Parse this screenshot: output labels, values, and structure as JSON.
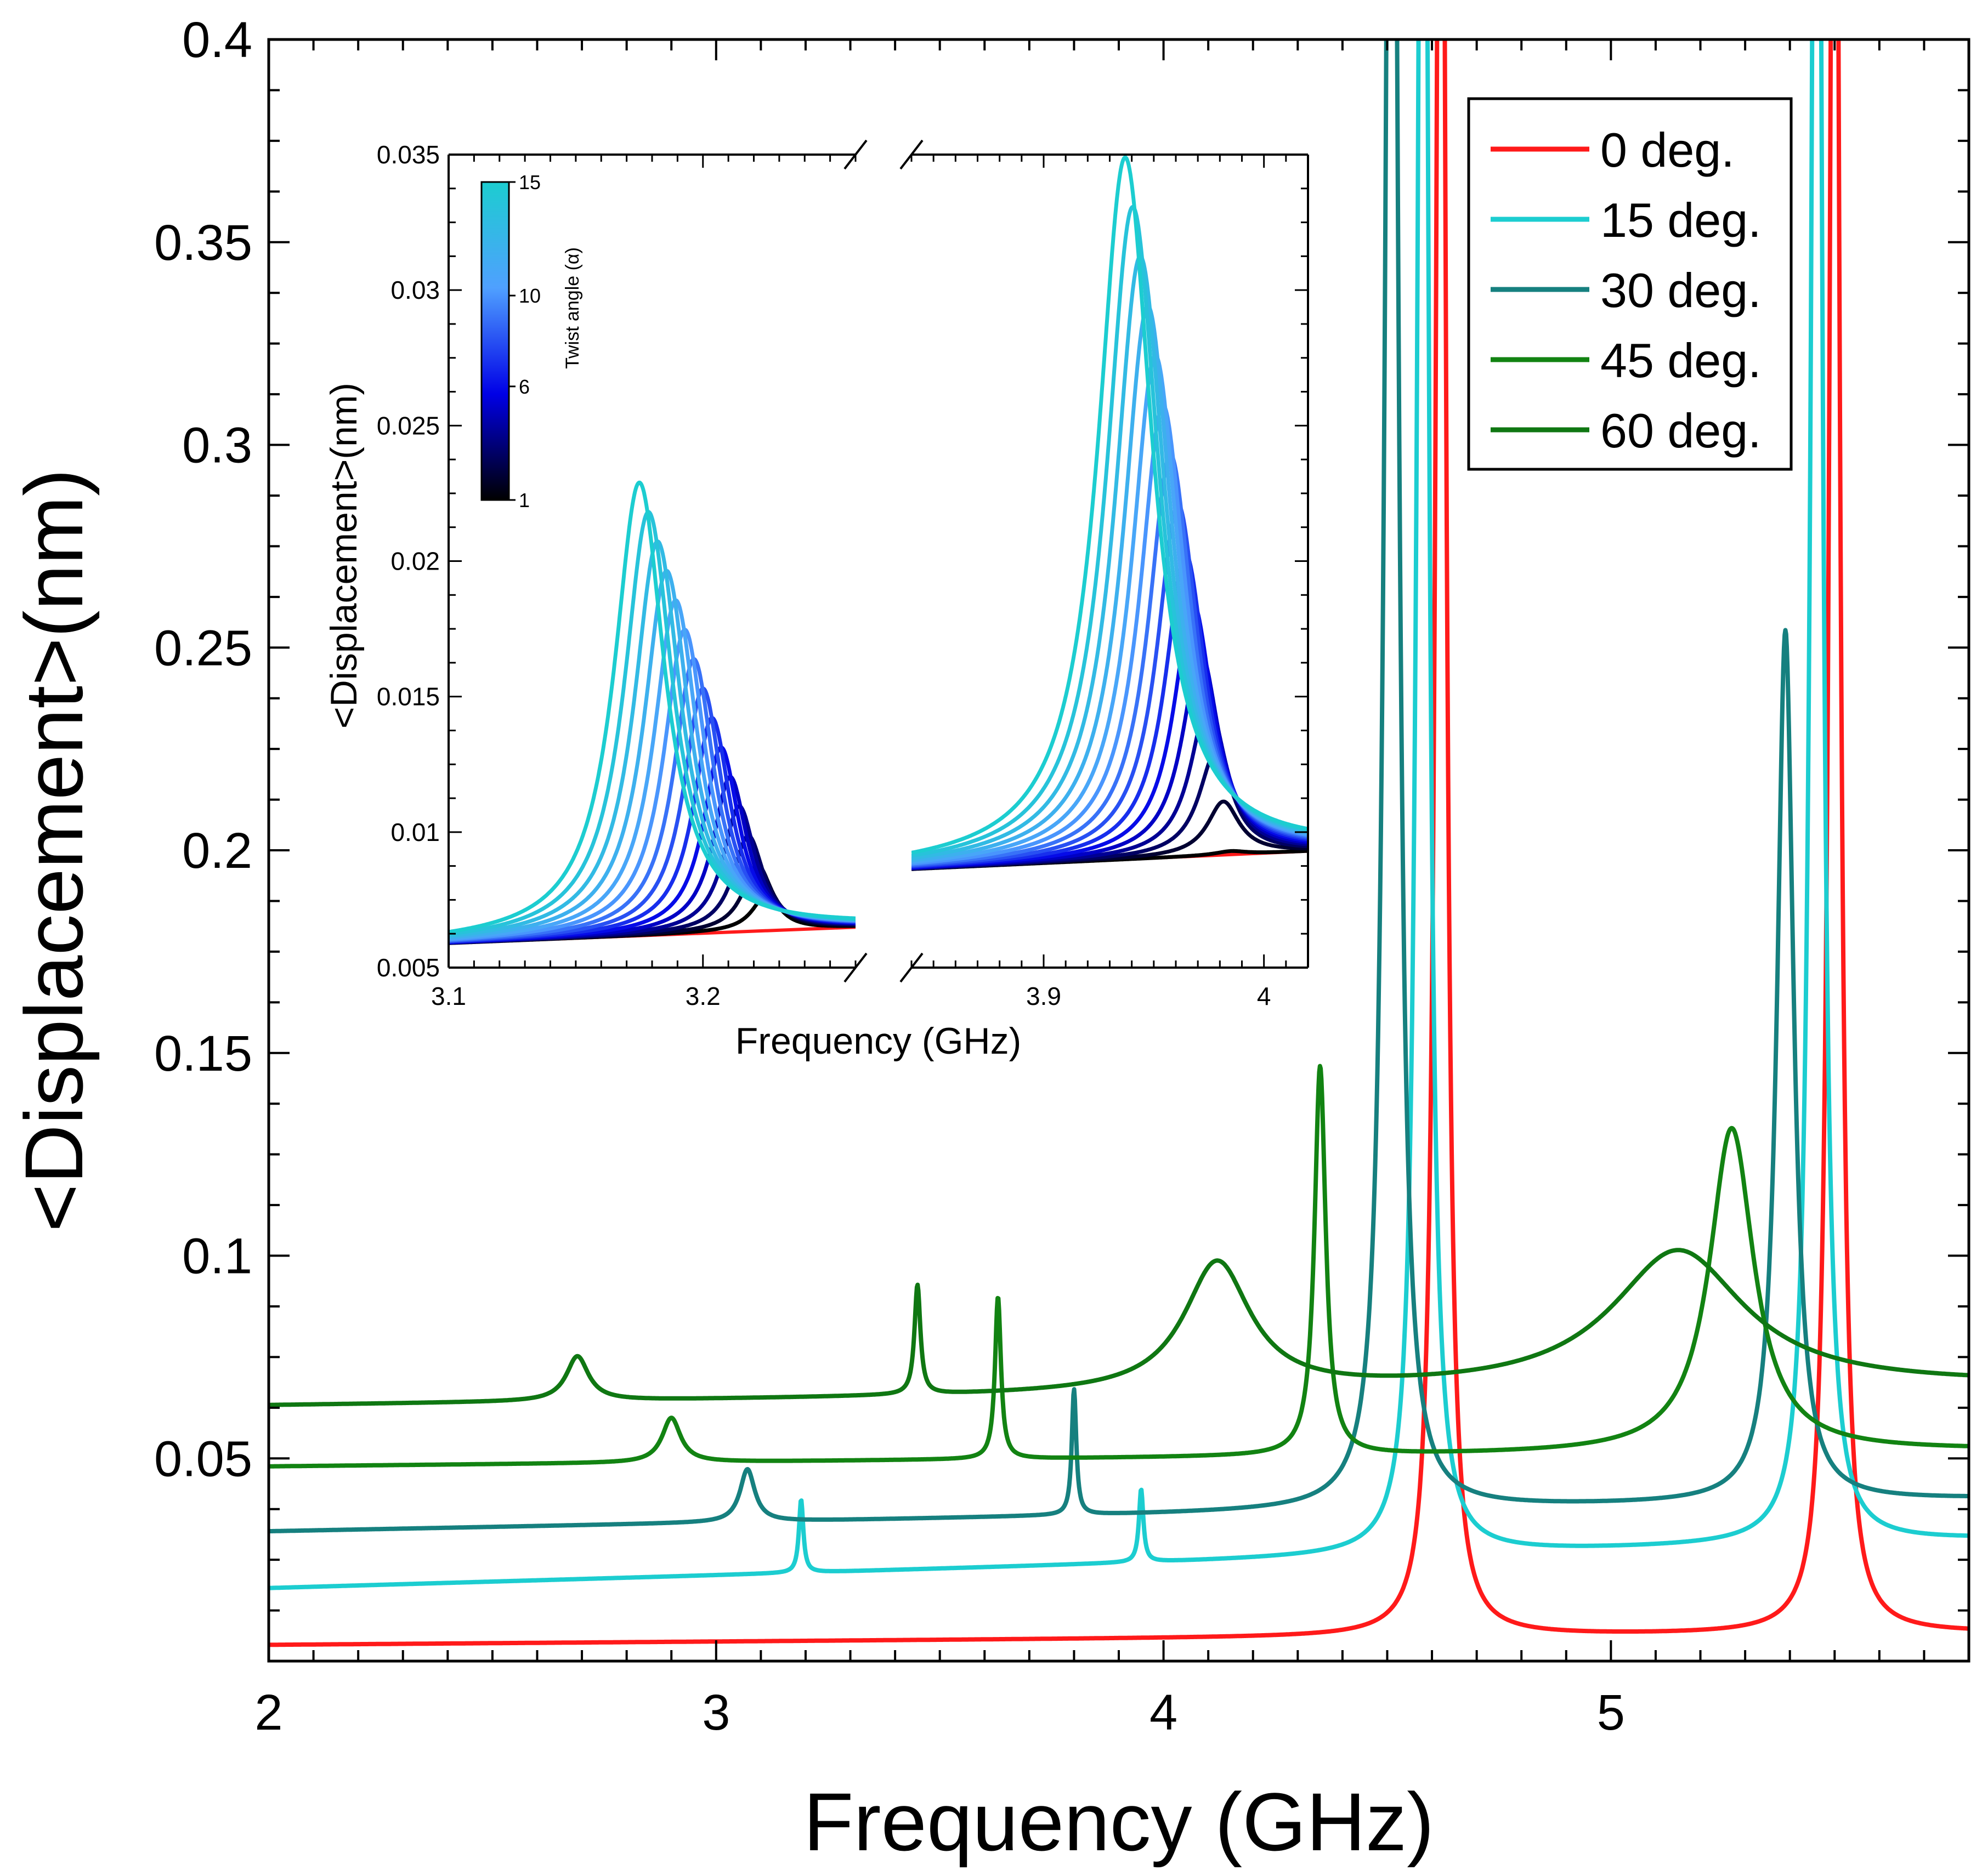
{
  "chart_data": [
    {
      "type": "line",
      "xlabel": "Frequency (GHz)",
      "ylabel": "<Displacement>(nm)",
      "xlim": [
        2.0,
        5.8
      ],
      "ylim": [
        0.0,
        0.4
      ],
      "x_ticks": [
        "2",
        "3",
        "4",
        "5"
      ],
      "x_tick_values": [
        2,
        3,
        4,
        5
      ],
      "y_ticks": [
        "0.05",
        "0.1",
        "0.15",
        "0.2",
        "0.25",
        "0.3",
        "0.35",
        "0.4"
      ],
      "y_tick_values": [
        0.05,
        0.1,
        0.15,
        0.2,
        0.25,
        0.3,
        0.35,
        0.4
      ],
      "legend_position": "top-right",
      "series": [
        {
          "name": "0 deg.",
          "color": "#ff1a1a",
          "baseline_start": 0.004,
          "baseline_end": 0.007,
          "peaks": [
            [
              4.62,
              0.6,
              0.012
            ],
            [
              5.5,
              0.6,
              0.012
            ]
          ]
        },
        {
          "name": "15 deg.",
          "color": "#1ccdd0",
          "baseline_start": 0.018,
          "baseline_end": 0.03,
          "peaks": [
            [
              3.19,
              0.018,
              0.006
            ],
            [
              3.95,
              0.018,
              0.006
            ],
            [
              4.58,
              0.6,
              0.013
            ],
            [
              5.46,
              0.6,
              0.013
            ]
          ]
        },
        {
          "name": "30 deg.",
          "color": "#16807f",
          "baseline_start": 0.032,
          "baseline_end": 0.04,
          "peaks": [
            [
              3.07,
              0.013,
              0.02
            ],
            [
              3.8,
              0.031,
              0.006
            ],
            [
              4.51,
              0.6,
              0.015
            ],
            [
              5.39,
              0.215,
              0.022
            ]
          ]
        },
        {
          "name": "45 deg.",
          "color": "#128312",
          "baseline_start": 0.048,
          "baseline_end": 0.052,
          "peaks": [
            [
              2.9,
              0.011,
              0.025
            ],
            [
              3.63,
              0.04,
              0.008
            ],
            [
              4.35,
              0.096,
              0.015
            ],
            [
              5.27,
              0.08,
              0.06
            ]
          ]
        },
        {
          "name": "60 deg.",
          "color": "#0f7712",
          "baseline_start": 0.063,
          "baseline_end": 0.068,
          "peaks": [
            [
              2.69,
              0.011,
              0.03
            ],
            [
              3.45,
              0.027,
              0.008
            ],
            [
              4.12,
              0.032,
              0.09
            ],
            [
              5.15,
              0.034,
              0.18
            ]
          ]
        }
      ]
    },
    {
      "type": "line",
      "xlabel": "Frequency (GHz)",
      "ylabel": "<Displacement>(nm)",
      "ylim": [
        0.005,
        0.035
      ],
      "broken_x_axis": true,
      "segments": [
        {
          "xlim": [
            3.1,
            3.26
          ],
          "x_ticks": [
            "3.1",
            "3.2"
          ],
          "x_tick_values": [
            3.1,
            3.2
          ]
        },
        {
          "xlim": [
            3.84,
            4.02
          ],
          "x_ticks": [
            "3.9",
            "4"
          ],
          "x_tick_values": [
            3.9,
            4.0
          ]
        }
      ],
      "y_ticks": [
        "0.005",
        "0.01",
        "0.015",
        "0.02",
        "0.025",
        "0.03",
        "0.035"
      ],
      "y_tick_values": [
        0.005,
        0.01,
        0.015,
        0.02,
        0.025,
        0.03,
        0.035
      ],
      "colorbar": {
        "label": "Twist angle (α)",
        "ticks": [
          "1",
          "6",
          "10",
          "15"
        ],
        "tick_values": [
          1,
          6,
          10,
          15
        ],
        "range": [
          1,
          15
        ],
        "colors": [
          "#000000",
          "#0000e6",
          "#4fa0ff",
          "#1ccdd0"
        ]
      },
      "reference_series": {
        "name": "0",
        "color": "#ff1a1a"
      },
      "family": {
        "angles": [
          1,
          2,
          3,
          4,
          5,
          6,
          7,
          8,
          9,
          10,
          11,
          12,
          13,
          14,
          15
        ],
        "peak1": {
          "x_first": 3.225,
          "x_last": 3.175,
          "y_first": 0.0077,
          "y_last": 0.0229,
          "width": 0.012
        },
        "peak2": {
          "x_first": 3.985,
          "x_last": 3.937,
          "y_first": 0.0093,
          "y_last": 0.0349,
          "width": 0.015
        },
        "baseline": {
          "start": 0.0059,
          "end": 0.0093
        }
      }
    }
  ]
}
